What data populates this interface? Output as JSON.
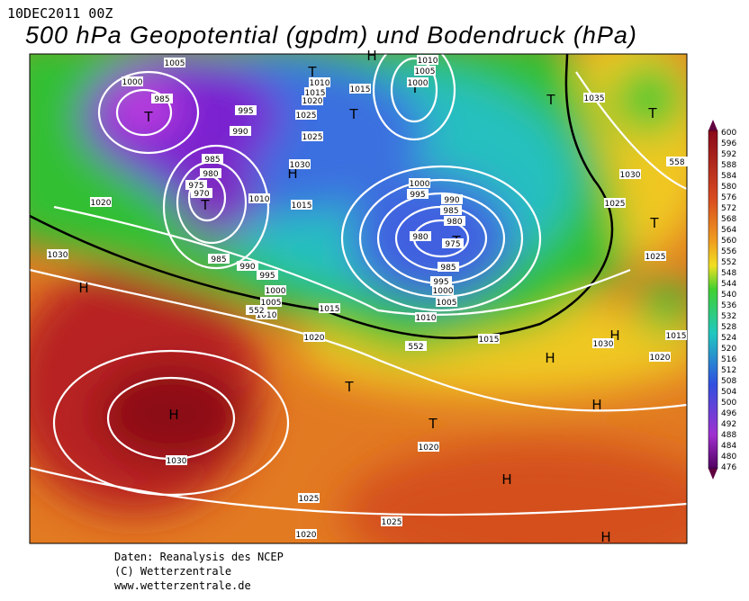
{
  "header": {
    "run": "10DEC2011 00Z",
    "title": "500 hPa Geopotential (gpdm) und Bodendruck (hPa)"
  },
  "color_scale": [
    600,
    596,
    592,
    588,
    584,
    580,
    576,
    572,
    568,
    564,
    560,
    556,
    552,
    548,
    544,
    540,
    536,
    532,
    528,
    524,
    520,
    516,
    512,
    508,
    504,
    500,
    496,
    492,
    488,
    484,
    480,
    476
  ],
  "map_labels": [
    "H",
    "H",
    "T",
    "T",
    "H",
    "H",
    "H",
    "H",
    "H",
    "T",
    "T",
    "H",
    "T",
    "T",
    "T",
    "T",
    "T",
    "T",
    "T",
    "H",
    "1005",
    "1000",
    "985",
    "1010",
    "1015",
    "1020",
    "1015",
    "1025",
    "1025",
    "995",
    "990",
    "985",
    "980",
    "975",
    "970",
    "1030",
    "1010",
    "1015",
    "1010",
    "1005",
    "1000",
    "1000",
    "995",
    "990",
    "985",
    "980",
    "980",
    "975",
    "985",
    "995",
    "1000",
    "1005",
    "1010",
    "1015",
    "1015",
    "1020",
    "985",
    "990",
    "995",
    "1000",
    "1005",
    "1010",
    "1020",
    "1030",
    "1035",
    "1030",
    "1025",
    "1025",
    "1030",
    "1020",
    "1015",
    "1020",
    "1030",
    "1025",
    "1020",
    "1025",
    "552",
    "552",
    "558"
  ],
  "footer": [
    "Daten: Reanalysis des NCEP",
    "(C) Wetterzentrale",
    "www.wetterzentrale.de"
  ]
}
